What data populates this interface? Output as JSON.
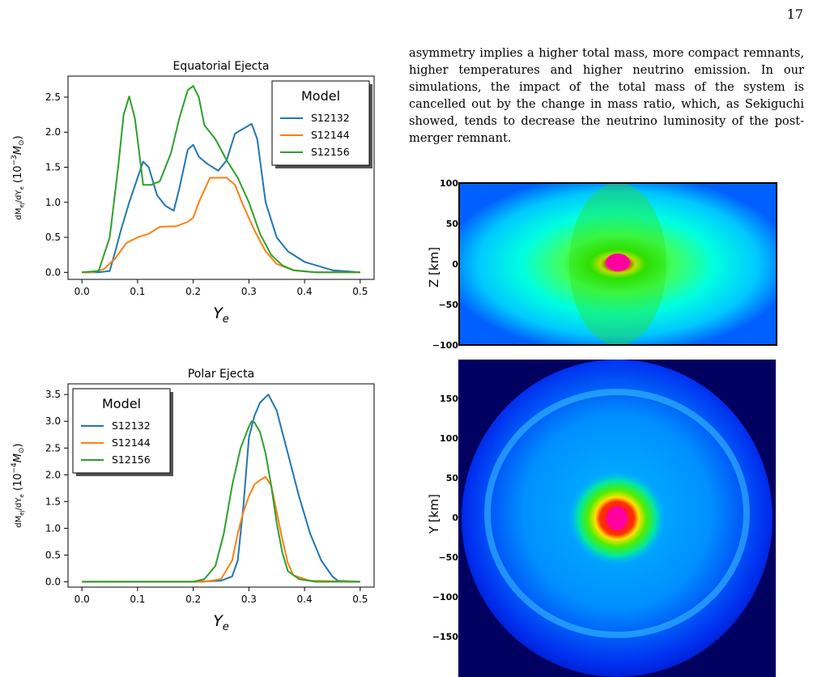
{
  "page": {
    "number": "17"
  },
  "body_text": "asymmetry implies a higher total mass, more compact remnants, higher temperatures and higher neutrino emission. In our simulations, the impact of the total mass of the system is cancelled out by the change in mass ratio, which, as Sekiguchi showed, tends to decrease the neutrino luminosity of the post-merger remnant.",
  "colors": {
    "S12132": "#1f77b4",
    "S12144": "#ff7f0e",
    "S12156": "#2ca02c"
  },
  "chart_data": [
    {
      "type": "line",
      "title": "Equatorial Ejecta",
      "xlabel": "Y_e",
      "ylabel": "dM_ej/dY_e (10^-3 M_⊙)",
      "xlim": [
        -0.025,
        0.525
      ],
      "ylim": [
        -0.1,
        2.8
      ],
      "xticks": [
        "0.0",
        "0.1",
        "0.2",
        "0.3",
        "0.4",
        "0.5"
      ],
      "xtick_values": [
        0.0,
        0.1,
        0.2,
        0.3,
        0.4,
        0.5
      ],
      "yticks": [
        "0.0",
        "0.5",
        "1.0",
        "1.5",
        "2.0",
        "2.5"
      ],
      "ytick_values": [
        0.0,
        0.5,
        1.0,
        1.5,
        2.0,
        2.5
      ],
      "legend": {
        "title": "Model",
        "placement": "top-right"
      },
      "series": [
        {
          "name": "S12132",
          "x": [
            0.0,
            0.03,
            0.05,
            0.06,
            0.07,
            0.085,
            0.1,
            0.11,
            0.12,
            0.135,
            0.15,
            0.165,
            0.175,
            0.19,
            0.2,
            0.21,
            0.225,
            0.245,
            0.26,
            0.275,
            0.29,
            0.305,
            0.315,
            0.33,
            0.35,
            0.37,
            0.4,
            0.45,
            0.5
          ],
          "values": [
            0.0,
            0.0,
            0.02,
            0.3,
            0.6,
            1.0,
            1.35,
            1.58,
            1.5,
            1.1,
            0.95,
            0.88,
            1.2,
            1.75,
            1.82,
            1.65,
            1.55,
            1.45,
            1.6,
            1.98,
            2.05,
            2.12,
            1.9,
            1.0,
            0.5,
            0.3,
            0.15,
            0.03,
            0.0
          ]
        },
        {
          "name": "S12144",
          "x": [
            0.0,
            0.02,
            0.04,
            0.06,
            0.08,
            0.1,
            0.12,
            0.14,
            0.17,
            0.19,
            0.2,
            0.21,
            0.23,
            0.26,
            0.275,
            0.29,
            0.31,
            0.33,
            0.35,
            0.38,
            0.42,
            0.5
          ],
          "values": [
            0.0,
            0.0,
            0.05,
            0.2,
            0.42,
            0.5,
            0.55,
            0.65,
            0.66,
            0.72,
            0.78,
            1.0,
            1.35,
            1.35,
            1.25,
            0.95,
            0.6,
            0.3,
            0.12,
            0.03,
            0.0,
            0.0
          ]
        },
        {
          "name": "S12156",
          "x": [
            0.0,
            0.03,
            0.05,
            0.065,
            0.075,
            0.085,
            0.095,
            0.1,
            0.11,
            0.125,
            0.14,
            0.16,
            0.175,
            0.19,
            0.2,
            0.21,
            0.22,
            0.24,
            0.26,
            0.28,
            0.3,
            0.32,
            0.34,
            0.36,
            0.38,
            0.42,
            0.5
          ],
          "values": [
            0.0,
            0.02,
            0.5,
            1.5,
            2.25,
            2.51,
            2.2,
            1.9,
            1.25,
            1.25,
            1.3,
            1.7,
            2.2,
            2.6,
            2.66,
            2.5,
            2.1,
            1.9,
            1.6,
            1.35,
            1.0,
            0.55,
            0.25,
            0.1,
            0.03,
            0.0,
            0.0
          ]
        }
      ]
    },
    {
      "type": "line",
      "title": "Polar Ejecta",
      "xlabel": "Y_e",
      "ylabel": "dM_ej/dY_e (10^-4 M_⊙)",
      "xlim": [
        -0.025,
        0.525
      ],
      "ylim": [
        -0.1,
        3.7
      ],
      "xticks": [
        "0.0",
        "0.1",
        "0.2",
        "0.3",
        "0.4",
        "0.5"
      ],
      "xtick_values": [
        0.0,
        0.1,
        0.2,
        0.3,
        0.4,
        0.5
      ],
      "yticks": [
        "0.0",
        "0.5",
        "1.0",
        "1.5",
        "2.0",
        "2.5",
        "3.0",
        "3.5"
      ],
      "ytick_values": [
        0.0,
        0.5,
        1.0,
        1.5,
        2.0,
        2.5,
        3.0,
        3.5
      ],
      "legend": {
        "title": "Model",
        "placement": "top-left"
      },
      "series": [
        {
          "name": "S12132",
          "x": [
            0.0,
            0.2,
            0.25,
            0.27,
            0.28,
            0.29,
            0.3,
            0.31,
            0.32,
            0.335,
            0.35,
            0.37,
            0.39,
            0.41,
            0.43,
            0.45,
            0.46,
            0.5
          ],
          "values": [
            0.0,
            0.0,
            0.02,
            0.1,
            0.4,
            1.4,
            2.7,
            3.1,
            3.35,
            3.5,
            3.2,
            2.4,
            1.6,
            0.9,
            0.4,
            0.1,
            0.02,
            0.0
          ]
        },
        {
          "name": "S12144",
          "x": [
            0.0,
            0.22,
            0.25,
            0.27,
            0.28,
            0.29,
            0.3,
            0.31,
            0.32,
            0.33,
            0.34,
            0.35,
            0.36,
            0.37,
            0.38,
            0.41,
            0.5
          ],
          "values": [
            0.0,
            0.0,
            0.05,
            0.4,
            0.9,
            1.3,
            1.6,
            1.82,
            1.9,
            1.96,
            1.8,
            1.3,
            0.8,
            0.35,
            0.12,
            0.02,
            0.0
          ]
        },
        {
          "name": "S12156",
          "x": [
            0.0,
            0.2,
            0.22,
            0.24,
            0.255,
            0.27,
            0.285,
            0.3,
            0.305,
            0.31,
            0.32,
            0.33,
            0.34,
            0.35,
            0.36,
            0.37,
            0.39,
            0.42,
            0.5
          ],
          "values": [
            0.0,
            0.0,
            0.05,
            0.3,
            0.9,
            1.8,
            2.5,
            2.9,
            3.0,
            2.98,
            2.8,
            2.4,
            1.8,
            1.1,
            0.55,
            0.2,
            0.05,
            0.0,
            0.0
          ]
        }
      ]
    }
  ],
  "sim_top": {
    "ylabel": "Z [km]",
    "ticks": [
      "100",
      "50",
      "0",
      "−50",
      "−100"
    ]
  },
  "sim_bottom": {
    "ylabel": "Y [km]",
    "ticks": [
      "150",
      "100",
      "50",
      "0",
      "−50",
      "−100",
      "−150"
    ]
  }
}
